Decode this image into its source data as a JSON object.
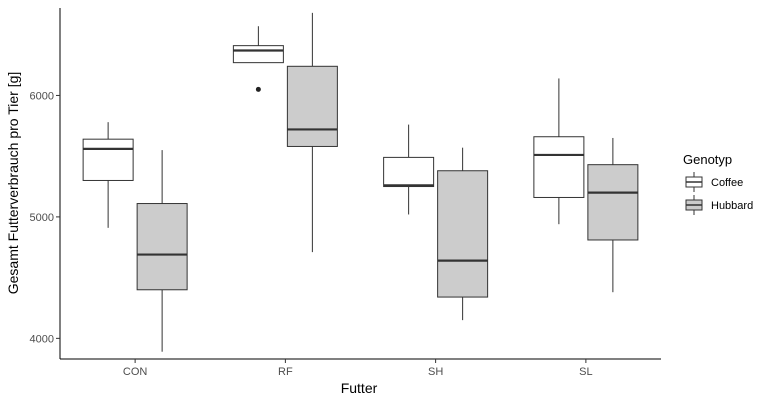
{
  "chart_data": {
    "type": "boxplot",
    "xlabel": "Futter",
    "ylabel": "Gesamt Futterverbrauch pro Tier [g]",
    "categories": [
      "CON",
      "RF",
      "SH",
      "SL"
    ],
    "yticks": [
      4000,
      5000,
      6000
    ],
    "ylim": [
      3830,
      6720
    ],
    "grid": false,
    "legend": {
      "title": "Genotyp",
      "position": "right"
    },
    "series": [
      {
        "name": "Coffee",
        "color": "#ffffff",
        "boxes": [
          {
            "min": 4910,
            "q1": 5300,
            "median": 5560,
            "q3": 5640,
            "max": 5780,
            "outliers": []
          },
          {
            "min": 6270,
            "q1": 6270,
            "median": 6370,
            "q3": 6410,
            "max": 6570,
            "outliers": [
              6050
            ]
          },
          {
            "min": 5020,
            "q1": 5250,
            "median": 5260,
            "q3": 5490,
            "max": 5760,
            "outliers": []
          },
          {
            "min": 4940,
            "q1": 5160,
            "median": 5510,
            "q3": 5660,
            "max": 6140,
            "outliers": []
          }
        ]
      },
      {
        "name": "Hubbard",
        "color": "#cccccc",
        "boxes": [
          {
            "min": 3890,
            "q1": 4400,
            "median": 4690,
            "q3": 5110,
            "max": 5550,
            "outliers": []
          },
          {
            "min": 4710,
            "q1": 5580,
            "median": 5720,
            "q3": 6240,
            "max": 6680,
            "outliers": []
          },
          {
            "min": 4150,
            "q1": 4340,
            "median": 4640,
            "q3": 5380,
            "max": 5570,
            "outliers": []
          },
          {
            "min": 4380,
            "q1": 4810,
            "median": 5200,
            "q3": 5430,
            "max": 5650,
            "outliers": []
          }
        ]
      }
    ]
  }
}
